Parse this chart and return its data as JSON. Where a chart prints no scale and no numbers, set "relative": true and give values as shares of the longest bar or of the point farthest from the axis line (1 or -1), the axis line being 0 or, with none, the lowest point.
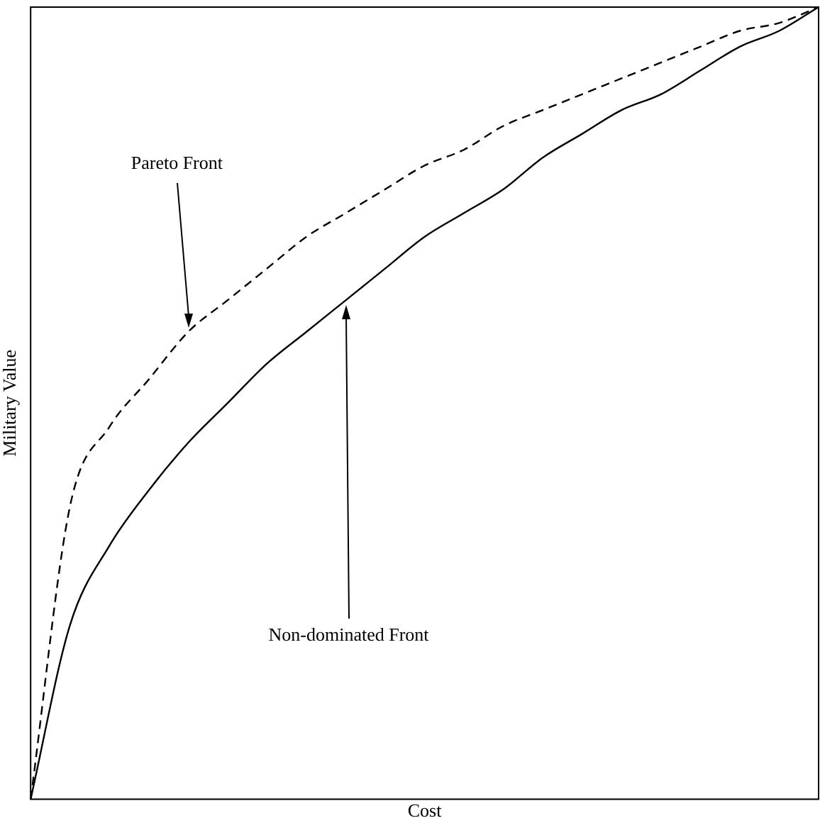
{
  "chart_data": {
    "type": "line",
    "relative": true,
    "xlabel": "Cost",
    "ylabel": "Military Value",
    "legend": false,
    "marker": "none",
    "grid": false,
    "categories": [
      null,
      null,
      null,
      null,
      null,
      null,
      null,
      null,
      null,
      null,
      null,
      null,
      null,
      null,
      null,
      null,
      null,
      null,
      null,
      null,
      null
    ],
    "series": [
      {
        "color": "#000000",
        "line_style": "dashed",
        "values": [
          0,
          0.37,
          0.47,
          0.53,
          0.59,
          0.63,
          0.67,
          0.71,
          0.74,
          0.77,
          0.8,
          0.82,
          0.85,
          0.87,
          0.89,
          0.91,
          0.93,
          0.95,
          0.97,
          0.98,
          1
        ]
      },
      {
        "color": "#000000",
        "line_style": "solid",
        "values": [
          0,
          0.22,
          0.32,
          0.39,
          0.45,
          0.5,
          0.55,
          0.59,
          0.63,
          0.67,
          0.71,
          0.74,
          0.77,
          0.81,
          0.84,
          0.87,
          0.89,
          0.92,
          0.95,
          0.97,
          1
        ]
      }
    ],
    "annotations": [
      "Pareto Front",
      "Non-dominated Front"
    ]
  }
}
